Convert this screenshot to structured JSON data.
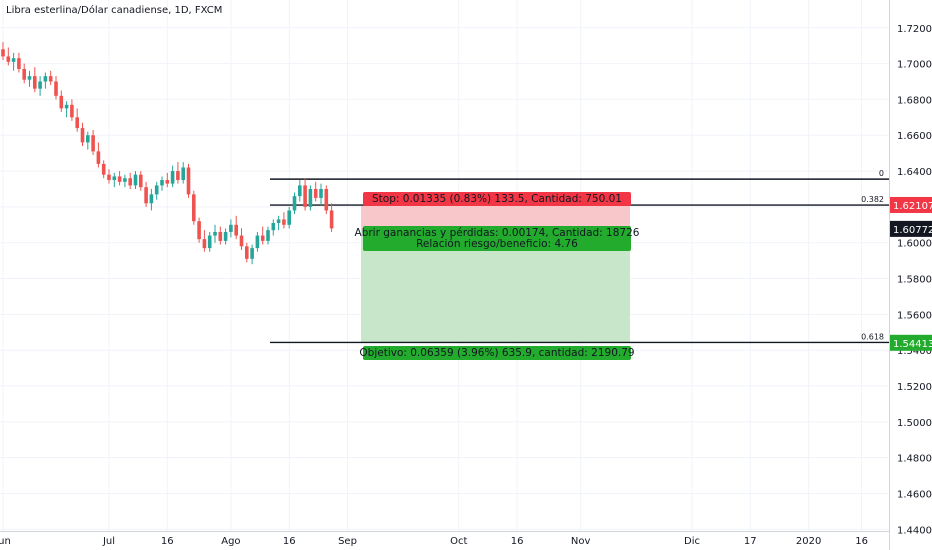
{
  "header": {
    "title": "Libra esterlina/Dólar canadiense, 1D, FXCM"
  },
  "chart_data": {
    "type": "candlestick",
    "ylim": [
      1.4385,
      1.7355
    ],
    "y_ticks": [
      "1.72000",
      "1.70000",
      "1.68000",
      "1.66000",
      "1.64000",
      "1.62000",
      "1.60000",
      "1.58000",
      "1.56000",
      "1.54000",
      "1.52000",
      "1.50000",
      "1.48000",
      "1.46000",
      "1.44000"
    ],
    "y_tick_values": [
      1.72,
      1.7,
      1.68,
      1.66,
      1.64,
      1.62,
      1.6,
      1.58,
      1.56,
      1.54,
      1.52,
      1.5,
      1.48,
      1.46,
      1.44
    ],
    "x_ticks": [
      {
        "label": "Jun",
        "bar": 0
      },
      {
        "label": "Jul",
        "bar": 20
      },
      {
        "label": "16",
        "bar": 31
      },
      {
        "label": "Ago",
        "bar": 43
      },
      {
        "label": "16",
        "bar": 54
      },
      {
        "label": "Sep",
        "bar": 65
      },
      {
        "label": "Oct",
        "bar": 86
      },
      {
        "label": "16",
        "bar": 97
      },
      {
        "label": "Nov",
        "bar": 109
      },
      {
        "label": "Dic",
        "bar": 130
      },
      {
        "label": "17",
        "bar": 141
      },
      {
        "label": "2020",
        "bar": 152
      },
      {
        "label": "16",
        "bar": 162
      }
    ],
    "candles": [
      [
        1.708,
        1.712,
        1.702,
        1.704
      ],
      [
        1.704,
        1.709,
        1.699,
        1.701
      ],
      [
        1.701,
        1.706,
        1.696,
        1.703
      ],
      [
        1.703,
        1.706,
        1.695,
        1.697
      ],
      [
        1.697,
        1.7,
        1.689,
        1.691
      ],
      [
        1.691,
        1.696,
        1.687,
        1.693
      ],
      [
        1.693,
        1.698,
        1.684,
        1.686
      ],
      [
        1.686,
        1.693,
        1.682,
        1.69
      ],
      [
        1.69,
        1.695,
        1.686,
        1.693
      ],
      [
        1.693,
        1.696,
        1.688,
        1.69
      ],
      [
        1.69,
        1.693,
        1.68,
        1.682
      ],
      [
        1.682,
        1.685,
        1.673,
        1.675
      ],
      [
        1.675,
        1.679,
        1.67,
        1.677
      ],
      [
        1.677,
        1.68,
        1.668,
        1.67
      ],
      [
        1.67,
        1.675,
        1.662,
        1.664
      ],
      [
        1.664,
        1.667,
        1.654,
        1.656
      ],
      [
        1.656,
        1.662,
        1.652,
        1.66
      ],
      [
        1.66,
        1.663,
        1.649,
        1.651
      ],
      [
        1.651,
        1.656,
        1.642,
        1.644
      ],
      [
        1.644,
        1.646,
        1.636,
        1.638
      ],
      [
        1.638,
        1.641,
        1.633,
        1.635
      ],
      [
        1.635,
        1.639,
        1.631,
        1.637
      ],
      [
        1.637,
        1.64,
        1.632,
        1.634
      ],
      [
        1.634,
        1.638,
        1.631,
        1.636
      ],
      [
        1.636,
        1.639,
        1.63,
        1.632
      ],
      [
        1.632,
        1.64,
        1.63,
        1.638
      ],
      [
        1.638,
        1.64,
        1.629,
        1.631
      ],
      [
        1.631,
        1.634,
        1.62,
        1.622
      ],
      [
        1.622,
        1.63,
        1.618,
        1.627
      ],
      [
        1.627,
        1.634,
        1.624,
        1.632
      ],
      [
        1.632,
        1.637,
        1.629,
        1.635
      ],
      [
        1.635,
        1.639,
        1.631,
        1.633
      ],
      [
        1.633,
        1.643,
        1.631,
        1.64
      ],
      [
        1.64,
        1.645,
        1.633,
        1.635
      ],
      [
        1.635,
        1.645,
        1.633,
        1.642
      ],
      [
        1.642,
        1.644,
        1.625,
        1.627
      ],
      [
        1.627,
        1.629,
        1.61,
        1.612
      ],
      [
        1.612,
        1.614,
        1.6,
        1.602
      ],
      [
        1.602,
        1.607,
        1.595,
        1.597
      ],
      [
        1.597,
        1.606,
        1.595,
        1.604
      ],
      [
        1.604,
        1.61,
        1.6,
        1.606
      ],
      [
        1.606,
        1.609,
        1.599,
        1.601
      ],
      [
        1.601,
        1.608,
        1.599,
        1.606
      ],
      [
        1.606,
        1.613,
        1.603,
        1.61
      ],
      [
        1.61,
        1.615,
        1.602,
        1.604
      ],
      [
        1.604,
        1.608,
        1.596,
        1.598
      ],
      [
        1.598,
        1.6,
        1.589,
        1.591
      ],
      [
        1.591,
        1.599,
        1.588,
        1.597
      ],
      [
        1.597,
        1.606,
        1.595,
        1.604
      ],
      [
        1.604,
        1.609,
        1.599,
        1.601
      ],
      [
        1.601,
        1.609,
        1.599,
        1.607
      ],
      [
        1.607,
        1.613,
        1.604,
        1.611
      ],
      [
        1.611,
        1.615,
        1.607,
        1.613
      ],
      [
        1.613,
        1.617,
        1.608,
        1.61
      ],
      [
        1.61,
        1.62,
        1.608,
        1.618
      ],
      [
        1.618,
        1.628,
        1.616,
        1.626
      ],
      [
        1.626,
        1.635,
        1.623,
        1.632
      ],
      [
        1.632,
        1.636,
        1.618,
        1.62
      ],
      [
        1.62,
        1.632,
        1.618,
        1.63
      ],
      [
        1.63,
        1.634,
        1.623,
        1.625
      ],
      [
        1.625,
        1.633,
        1.621,
        1.63
      ],
      [
        1.63,
        1.632,
        1.616,
        1.618
      ],
      [
        1.618,
        1.622,
        1.606,
        1.608
      ]
    ],
    "colors": {
      "up": "#26a69a",
      "down": "#ef5350",
      "tick_text": "#131722"
    },
    "fib_levels": [
      {
        "label": "0",
        "value": 1.6355
      },
      {
        "label": "0.382",
        "value": 1.621
      },
      {
        "label": "0.618",
        "value": 1.5443
      }
    ],
    "price_labels": [
      {
        "text": "1.62107",
        "value": 1.62107,
        "color": "#f23645"
      },
      {
        "text": "1.60772",
        "value": 1.60772,
        "color": "#131722"
      },
      {
        "text": "1.54413",
        "value": 1.54413,
        "color": "#22ab2c"
      }
    ],
    "position": {
      "entry": 1.6077,
      "stop": 1.6211,
      "target": 1.5441,
      "stop_label": "Stop: 0.01335 (0.83%) 133.5, Cantidad: 750.01",
      "pnl_label": "Abrir ganancias y pérdidas: 0.00174, Cantidad: 18726",
      "rr_label": "Relación riesgo/beneficio: 4.76",
      "target_label": "Objetivo: 0.06359 (3.96%) 635.9, cantidad: 2190.79"
    }
  }
}
